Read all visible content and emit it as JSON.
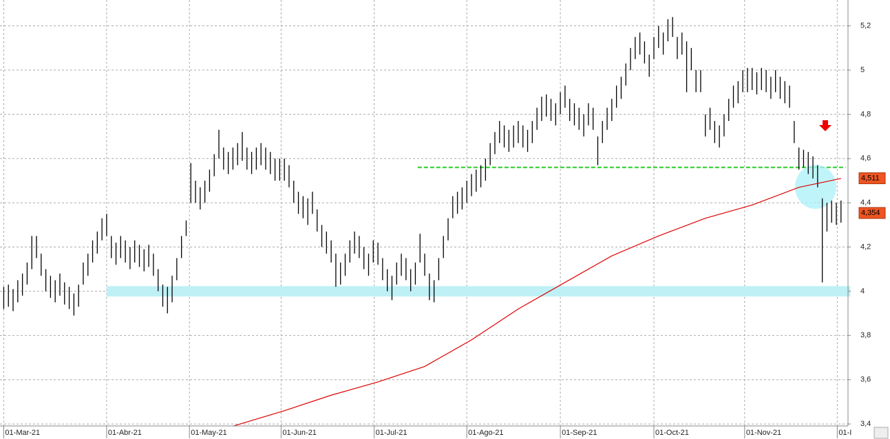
{
  "chart_data": {
    "type": "ohlc",
    "color": "#000000",
    "xlim": [
      -0.8,
      180.5
    ],
    "ylim": [
      3.391,
      5.317
    ],
    "grid": true,
    "xticks": [
      {
        "value": 0,
        "label": "01-Mar-21"
      },
      {
        "value": 22,
        "label": "01-Abr-21"
      },
      {
        "value": 39.7,
        "label": "01-May-21"
      },
      {
        "value": 59.3,
        "label": "01-Jun-21"
      },
      {
        "value": 79.2,
        "label": "01-Jul-21"
      },
      {
        "value": 99,
        "label": "01-Ago-21"
      },
      {
        "value": 119,
        "label": "01-Sep-21"
      },
      {
        "value": 139,
        "label": "01-Oct-21"
      },
      {
        "value": 158.4,
        "label": "01-Nov-21"
      },
      {
        "value": 178.2,
        "label": "01-I"
      }
    ],
    "yticks": [
      {
        "value": 3.4,
        "label": "3,4"
      },
      {
        "value": 3.6,
        "label": "3,6"
      },
      {
        "value": 3.8,
        "label": "3,8"
      },
      4,
      {
        "value": 4.2,
        "label": "4,2"
      },
      {
        "value": 4.4,
        "label": "4,4"
      },
      {
        "value": 4.6,
        "label": "4,6"
      },
      {
        "value": 4.8,
        "label": "4,8"
      },
      5,
      {
        "value": 5.2,
        "label": "5,2"
      }
    ],
    "high": [
      4.02,
      4.03,
      4.01,
      4.05,
      4.08,
      4.13,
      4.25,
      4.25,
      4.17,
      4.1,
      4.07,
      4.05,
      4.08,
      4.04,
      4.02,
      3.99,
      4.03,
      4.13,
      4.17,
      4.23,
      4.27,
      4.33,
      4.35,
      4.25,
      4.22,
      4.25,
      4.23,
      4.2,
      4.23,
      4.21,
      4.19,
      4.21,
      4.17,
      4.1,
      4.03,
      4.02,
      4.07,
      4.15,
      4.25,
      4.32,
      4.58,
      4.5,
      4.47,
      4.5,
      4.55,
      4.62,
      4.73,
      4.65,
      4.63,
      4.65,
      4.67,
      4.72,
      4.65,
      4.63,
      4.65,
      4.67,
      4.65,
      4.63,
      4.6,
      4.6,
      4.6,
      4.57,
      4.5,
      4.45,
      4.43,
      4.42,
      4.45,
      4.37,
      4.3,
      4.27,
      4.23,
      4.17,
      4.13,
      4.17,
      4.23,
      4.27,
      4.25,
      4.2,
      4.17,
      4.23,
      4.22,
      4.15,
      4.1,
      4.07,
      4.13,
      4.17,
      4.15,
      4.1,
      4.13,
      4.26,
      4.17,
      4.08,
      4.05,
      4.15,
      4.25,
      4.33,
      4.43,
      4.45,
      4.47,
      4.5,
      4.53,
      4.55,
      4.57,
      4.6,
      4.67,
      4.72,
      4.77,
      4.75,
      4.73,
      4.75,
      4.77,
      4.75,
      4.73,
      4.77,
      4.83,
      4.88,
      4.89,
      4.87,
      4.85,
      4.9,
      4.93,
      4.87,
      4.85,
      4.83,
      4.8,
      4.85,
      4.83,
      4.7,
      4.77,
      4.83,
      4.87,
      4.93,
      4.97,
      5.03,
      5.1,
      5.15,
      5.17,
      5.13,
      5.07,
      5.15,
      5.2,
      5.17,
      5.23,
      5.24,
      5.15,
      5.17,
      5.13,
      5.1,
      5.0,
      5.0,
      4.8,
      4.83,
      4.77,
      4.75,
      4.8,
      4.87,
      4.93,
      4.95,
      5.0,
      5.01,
      5.01,
      4.99,
      5.01,
      5.0,
      4.97,
      5.0,
      4.97,
      4.95,
      4.93,
      4.77,
      4.65,
      4.64,
      4.63,
      4.61,
      4.57,
      4.42,
      4.4,
      4.41,
      4.4,
      4.41
    ],
    "low": [
      3.92,
      3.93,
      3.91,
      3.95,
      3.98,
      4.03,
      4.1,
      4.15,
      4.07,
      4.0,
      3.97,
      3.95,
      3.98,
      3.94,
      3.92,
      3.89,
      3.93,
      4.03,
      4.07,
      4.13,
      4.17,
      4.23,
      4.25,
      4.15,
      4.12,
      4.15,
      4.13,
      4.1,
      4.13,
      4.11,
      4.09,
      4.11,
      4.07,
      4.0,
      3.93,
      3.9,
      3.95,
      4.05,
      4.15,
      4.25,
      4.4,
      4.4,
      4.37,
      4.4,
      4.45,
      4.52,
      4.6,
      4.55,
      4.53,
      4.55,
      4.57,
      4.59,
      4.55,
      4.53,
      4.55,
      4.57,
      4.55,
      4.53,
      4.5,
      4.5,
      4.5,
      4.47,
      4.4,
      4.35,
      4.33,
      4.3,
      4.35,
      4.27,
      4.2,
      4.17,
      4.13,
      4.02,
      4.03,
      4.07,
      4.13,
      4.17,
      4.15,
      4.1,
      4.07,
      4.13,
      4.12,
      4.05,
      4.0,
      3.96,
      4.03,
      4.07,
      4.05,
      4.0,
      4.03,
      4.13,
      4.07,
      3.96,
      3.95,
      4.05,
      4.15,
      4.23,
      4.33,
      4.35,
      4.37,
      4.4,
      4.43,
      4.45,
      4.47,
      4.5,
      4.57,
      4.62,
      4.67,
      4.65,
      4.63,
      4.65,
      4.67,
      4.65,
      4.63,
      4.67,
      4.73,
      4.77,
      4.79,
      4.77,
      4.75,
      4.8,
      4.83,
      4.77,
      4.75,
      4.73,
      4.7,
      4.75,
      4.73,
      4.57,
      4.67,
      4.73,
      4.77,
      4.83,
      4.87,
      4.93,
      5.0,
      5.05,
      5.07,
      5.03,
      4.97,
      5.05,
      5.1,
      5.07,
      5.13,
      5.15,
      5.05,
      5.07,
      4.9,
      5.0,
      4.9,
      4.9,
      4.7,
      4.73,
      4.67,
      4.65,
      4.7,
      4.77,
      4.83,
      4.85,
      4.9,
      4.9,
      4.91,
      4.89,
      4.91,
      4.9,
      4.87,
      4.9,
      4.87,
      4.85,
      4.83,
      4.67,
      4.55,
      4.56,
      4.53,
      4.51,
      4.47,
      4.04,
      4.27,
      4.31,
      4.3,
      4.31
    ],
    "ma": {
      "color": "#dd0000",
      "x": [
        49,
        60,
        70,
        80,
        90,
        100,
        110,
        120,
        130,
        140,
        150,
        160,
        170,
        179
      ],
      "values": [
        3.39,
        3.46,
        3.53,
        3.59,
        3.66,
        3.78,
        3.92,
        4.04,
        4.16,
        4.25,
        4.33,
        4.39,
        4.47,
        4.51
      ]
    },
    "levels": [
      {
        "value": 4.56,
        "x": [
          88.5,
          180
        ],
        "color": "#22cc22"
      },
      {
        "value": 4.0,
        "x": [
          22,
          181
        ],
        "color": "#bff0f5"
      }
    ],
    "price_labels": [
      {
        "value": 4.511,
        "label": "4,511"
      },
      {
        "value": 4.354,
        "label": "4,354"
      }
    ]
  }
}
